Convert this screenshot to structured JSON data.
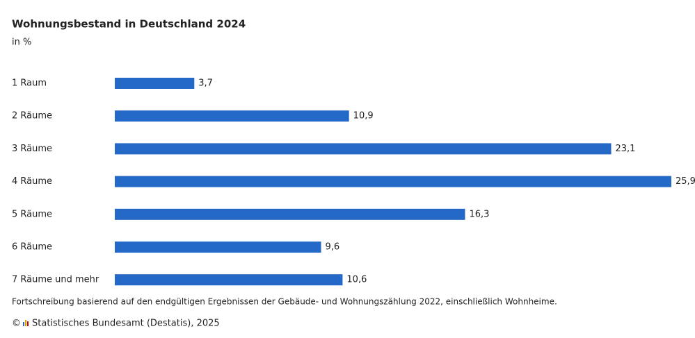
{
  "chart_data": {
    "type": "bar",
    "orientation": "horizontal",
    "title": "Wohnungsbestand in Deutschland 2024",
    "subtitle": "in %",
    "categories": [
      "1 Raum",
      "2 Räume",
      "3 Räume",
      "4 Räume",
      "5 Räume",
      "6 Räume",
      "7 Räume und mehr"
    ],
    "values": [
      3.7,
      10.9,
      23.1,
      25.9,
      16.3,
      9.6,
      10.6
    ],
    "value_labels": [
      "3,7",
      "10,9",
      "23,1",
      "25,9",
      "16,3",
      "9,6",
      "10,6"
    ],
    "color": "#2468c8",
    "footnote": "Fortschreibung basierend auf den endgültigen Ergebnissen der Gebäude- und Wohnungszählung 2022, einschließlich Wohnheime.",
    "copyright": "©",
    "source": "Statistisches Bundesamt (Destatis), 2025"
  }
}
